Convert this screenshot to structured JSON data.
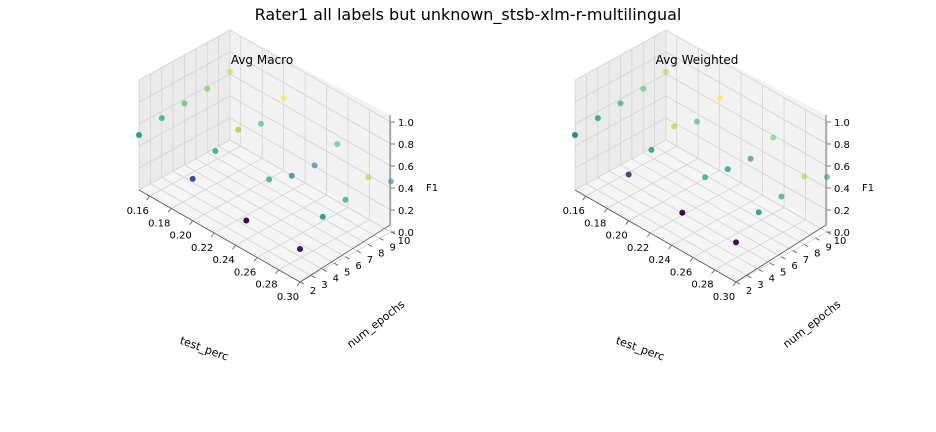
{
  "figure": {
    "suptitle": "Rater1 all labels but unknown_stsb-xlm-r-multilingual"
  },
  "chart_data": [
    {
      "type": "scatter",
      "title": "Avg Macro",
      "xlabel": "test_perc",
      "ylabel": "num_epochs",
      "zlabel": "F1",
      "x_ticks": [
        "0.16",
        "0.18",
        "0.20",
        "0.22",
        "0.24",
        "0.26",
        "0.28",
        "0.30"
      ],
      "y_ticks": [
        "2",
        "3",
        "4",
        "5",
        "6",
        "7",
        "8",
        "9",
        "10"
      ],
      "z_ticks": [
        "0.0",
        "0.2",
        "0.4",
        "0.6",
        "0.8",
        "1.0"
      ],
      "xlim": [
        0.15,
        0.3
      ],
      "ylim": [
        2,
        10
      ],
      "zlim": [
        0.0,
        1.0
      ],
      "grid": true,
      "colormap": "viridis",
      "points": [
        {
          "x": 0.15,
          "y": 2,
          "z": 0.5
        },
        {
          "x": 0.15,
          "y": 4,
          "z": 0.54
        },
        {
          "x": 0.15,
          "y": 6,
          "z": 0.56
        },
        {
          "x": 0.15,
          "y": 8,
          "z": 0.58
        },
        {
          "x": 0.15,
          "y": 10,
          "z": 0.62
        },
        {
          "x": 0.2,
          "y": 2,
          "z": 0.38
        },
        {
          "x": 0.2,
          "y": 4,
          "z": 0.52
        },
        {
          "x": 0.2,
          "y": 6,
          "z": 0.6
        },
        {
          "x": 0.2,
          "y": 8,
          "z": 0.54
        },
        {
          "x": 0.2,
          "y": 10,
          "z": 0.66
        },
        {
          "x": 0.25,
          "y": 2,
          "z": 0.28
        },
        {
          "x": 0.25,
          "y": 4,
          "z": 0.54
        },
        {
          "x": 0.25,
          "y": 6,
          "z": 0.46
        },
        {
          "x": 0.25,
          "y": 8,
          "z": 0.44
        },
        {
          "x": 0.25,
          "y": 10,
          "z": 0.52
        },
        {
          "x": 0.3,
          "y": 2,
          "z": 0.3
        },
        {
          "x": 0.3,
          "y": 4,
          "z": 0.48
        },
        {
          "x": 0.3,
          "y": 6,
          "z": 0.52
        },
        {
          "x": 0.3,
          "y": 8,
          "z": 0.61
        },
        {
          "x": 0.3,
          "y": 10,
          "z": 0.46
        }
      ]
    },
    {
      "type": "scatter",
      "title": "Avg Weighted",
      "xlabel": "test_perc",
      "ylabel": "num_epochs",
      "zlabel": "F1",
      "x_ticks": [
        "0.16",
        "0.18",
        "0.20",
        "0.22",
        "0.24",
        "0.26",
        "0.28",
        "0.30"
      ],
      "y_ticks": [
        "2",
        "3",
        "4",
        "5",
        "6",
        "7",
        "8",
        "9",
        "10"
      ],
      "z_ticks": [
        "0.0",
        "0.2",
        "0.4",
        "0.6",
        "0.8",
        "1.0"
      ],
      "xlim": [
        0.15,
        0.3
      ],
      "ylim": [
        2,
        10
      ],
      "zlim": [
        0.0,
        1.0
      ],
      "grid": true,
      "colormap": "viridis",
      "points": [
        {
          "x": 0.15,
          "y": 2,
          "z": 0.5
        },
        {
          "x": 0.15,
          "y": 4,
          "z": 0.54
        },
        {
          "x": 0.15,
          "y": 6,
          "z": 0.56
        },
        {
          "x": 0.15,
          "y": 8,
          "z": 0.58
        },
        {
          "x": 0.15,
          "y": 10,
          "z": 0.62
        },
        {
          "x": 0.2,
          "y": 2,
          "z": 0.42
        },
        {
          "x": 0.2,
          "y": 4,
          "z": 0.53
        },
        {
          "x": 0.2,
          "y": 6,
          "z": 0.63
        },
        {
          "x": 0.2,
          "y": 8,
          "z": 0.56
        },
        {
          "x": 0.2,
          "y": 10,
          "z": 0.66
        },
        {
          "x": 0.25,
          "y": 2,
          "z": 0.35
        },
        {
          "x": 0.25,
          "y": 4,
          "z": 0.56
        },
        {
          "x": 0.25,
          "y": 6,
          "z": 0.52
        },
        {
          "x": 0.25,
          "y": 8,
          "z": 0.5
        },
        {
          "x": 0.25,
          "y": 10,
          "z": 0.58
        },
        {
          "x": 0.3,
          "y": 2,
          "z": 0.36
        },
        {
          "x": 0.3,
          "y": 4,
          "z": 0.52
        },
        {
          "x": 0.3,
          "y": 6,
          "z": 0.55
        },
        {
          "x": 0.3,
          "y": 8,
          "z": 0.62
        },
        {
          "x": 0.3,
          "y": 10,
          "z": 0.5
        }
      ]
    }
  ]
}
